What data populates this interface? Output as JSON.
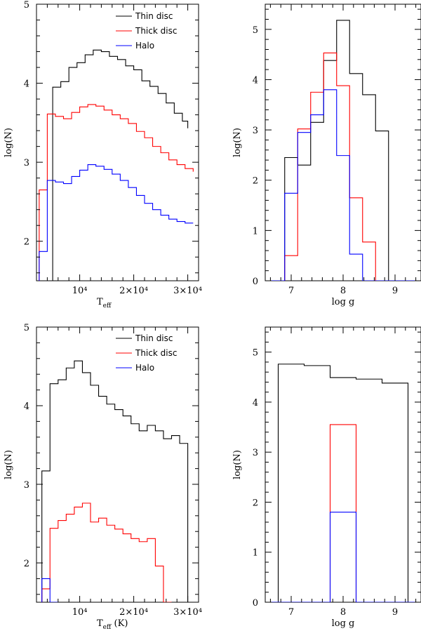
{
  "chart_data": [
    {
      "id": "top_left",
      "type": "histogram",
      "xlabel": "Teff",
      "ylabel": "log(N)",
      "xlim": [
        2000,
        32000
      ],
      "ylim": [
        1.5,
        5
      ],
      "xticks": [
        {
          "v": 10000,
          "label": "10⁴"
        },
        {
          "v": 20000,
          "label": "2×10⁴"
        },
        {
          "v": 30000,
          "label": "3×10⁴"
        }
      ],
      "yticks": [
        {
          "v": 2,
          "label": "2"
        },
        {
          "v": 3,
          "label": "3"
        },
        {
          "v": 4,
          "label": "4"
        },
        {
          "v": 5,
          "label": "5"
        }
      ],
      "legend": [
        "Thin disc",
        "Thick disc",
        "Halo"
      ],
      "series": [
        {
          "name": "Thin disc",
          "color": "#000000",
          "edges": [
            5000,
            6500,
            8000,
            9500,
            11000,
            12500,
            14000,
            15500,
            17000,
            18500,
            20000,
            21500,
            23000,
            24500,
            26000,
            27500,
            29000,
            30000
          ],
          "values": [
            3.95,
            4.02,
            4.2,
            4.26,
            4.36,
            4.42,
            4.4,
            4.34,
            4.3,
            4.22,
            4.17,
            4.03,
            3.96,
            3.87,
            3.75,
            3.62,
            3.52,
            3.43
          ]
        },
        {
          "name": "Thick disc",
          "color": "#ff0000",
          "edges": [
            2500,
            4000,
            5500,
            7000,
            8500,
            10000,
            11500,
            13000,
            14500,
            16000,
            17500,
            19000,
            20500,
            22000,
            23500,
            25000,
            26500,
            28000,
            29500,
            31000
          ],
          "values": [
            2.65,
            3.61,
            3.58,
            3.55,
            3.63,
            3.7,
            3.73,
            3.71,
            3.66,
            3.6,
            3.55,
            3.49,
            3.39,
            3.31,
            3.2,
            3.12,
            3.03,
            2.97,
            2.92,
            2.88
          ]
        },
        {
          "name": "Halo",
          "color": "#0000ff",
          "edges": [
            2500,
            4000,
            5500,
            7000,
            8500,
            10000,
            11500,
            13000,
            14500,
            16000,
            17500,
            19000,
            20500,
            22000,
            23500,
            25000,
            26500,
            28000,
            29500,
            31000
          ],
          "values": [
            1.87,
            2.77,
            2.75,
            2.73,
            2.82,
            2.9,
            2.97,
            2.95,
            2.91,
            2.85,
            2.77,
            2.68,
            2.58,
            2.48,
            2.4,
            2.33,
            2.28,
            2.25,
            2.23,
            2.23
          ]
        }
      ]
    },
    {
      "id": "top_right",
      "type": "histogram",
      "xlabel": "log g",
      "ylabel": "log(N)",
      "xlim": [
        6.5,
        9.5
      ],
      "ylim": [
        0,
        5.5
      ],
      "xticks": [
        {
          "v": 7,
          "label": "7"
        },
        {
          "v": 8,
          "label": "8"
        },
        {
          "v": 9,
          "label": "9"
        }
      ],
      "yticks": [
        {
          "v": 0,
          "label": "0"
        },
        {
          "v": 1,
          "label": "1"
        },
        {
          "v": 2,
          "label": "2"
        },
        {
          "v": 3,
          "label": "3"
        },
        {
          "v": 4,
          "label": "4"
        },
        {
          "v": 5,
          "label": "5"
        }
      ],
      "legend": [],
      "series": [
        {
          "name": "Thin disc",
          "color": "#000000",
          "edges": [
            6.5,
            6.875,
            7.125,
            7.375,
            7.625,
            7.875,
            8.125,
            8.375,
            8.625,
            8.875,
            9.5
          ],
          "values": [
            0,
            2.45,
            2.3,
            3.15,
            4.38,
            5.18,
            4.12,
            3.7,
            2.98,
            0
          ]
        },
        {
          "name": "Thick disc",
          "color": "#ff0000",
          "edges": [
            6.5,
            6.875,
            7.125,
            7.375,
            7.625,
            7.875,
            8.125,
            8.375,
            8.625,
            9.5
          ],
          "values": [
            0,
            0.5,
            3.02,
            3.75,
            4.53,
            3.88,
            1.65,
            0.77,
            0
          ]
        },
        {
          "name": "Halo",
          "color": "#0000ff",
          "edges": [
            6.5,
            6.875,
            7.125,
            7.375,
            7.625,
            7.875,
            8.125,
            8.375,
            9.5
          ],
          "values": [
            0,
            1.74,
            2.95,
            3.3,
            3.8,
            2.49,
            0.53,
            0
          ]
        }
      ]
    },
    {
      "id": "bottom_left",
      "type": "histogram",
      "xlabel": "Teff (K)",
      "ylabel": "log(N)",
      "xlim": [
        2000,
        32000
      ],
      "ylim": [
        1.5,
        5
      ],
      "xticks": [
        {
          "v": 10000,
          "label": "10⁴"
        },
        {
          "v": 20000,
          "label": "2×10⁴"
        },
        {
          "v": 30000,
          "label": "3×10⁴"
        }
      ],
      "yticks": [
        {
          "v": 2,
          "label": "2"
        },
        {
          "v": 3,
          "label": "3"
        },
        {
          "v": 4,
          "label": "4"
        },
        {
          "v": 5,
          "label": "5"
        }
      ],
      "legend": [
        "Thin disc",
        "Thick disc",
        "Halo"
      ],
      "series": [
        {
          "name": "Thin disc",
          "color": "#000000",
          "edges": [
            3000,
            4500,
            6000,
            7500,
            9000,
            10500,
            12000,
            13500,
            15000,
            16500,
            18000,
            19500,
            21000,
            22500,
            24000,
            25500,
            27000,
            28500,
            30000
          ],
          "values": [
            3.17,
            4.28,
            4.33,
            4.48,
            4.57,
            4.42,
            4.26,
            4.12,
            4.02,
            3.95,
            3.87,
            3.77,
            3.68,
            3.75,
            3.68,
            3.58,
            3.62,
            3.52
          ]
        },
        {
          "name": "Thick disc",
          "color": "#ff0000",
          "edges": [
            3000,
            4500,
            6000,
            7500,
            9000,
            10500,
            12000,
            13500,
            15000,
            16500,
            18000,
            19500,
            21000,
            22500,
            24000,
            25500,
            27000
          ],
          "values": [
            1.67,
            2.44,
            2.54,
            2.62,
            2.71,
            2.76,
            2.52,
            2.57,
            2.48,
            2.43,
            2.37,
            2.31,
            2.27,
            2.31,
            1.96,
            1.5
          ]
        },
        {
          "name": "Halo",
          "color": "#0000ff",
          "edges": [
            3000,
            4500,
            6000
          ],
          "values": [
            1.8,
            1.5
          ]
        }
      ]
    },
    {
      "id": "bottom_right",
      "type": "histogram",
      "xlabel": "log g",
      "ylabel": "log(N)",
      "xlim": [
        6.5,
        9.5
      ],
      "ylim": [
        0,
        5.5
      ],
      "xticks": [
        {
          "v": 7,
          "label": "7"
        },
        {
          "v": 8,
          "label": "8"
        },
        {
          "v": 9,
          "label": "9"
        }
      ],
      "yticks": [
        {
          "v": 0,
          "label": "0"
        },
        {
          "v": 1,
          "label": "1"
        },
        {
          "v": 2,
          "label": "2"
        },
        {
          "v": 3,
          "label": "3"
        },
        {
          "v": 4,
          "label": "4"
        },
        {
          "v": 5,
          "label": "5"
        }
      ],
      "legend": [],
      "series": [
        {
          "name": "Thin disc",
          "color": "#000000",
          "edges": [
            6.5,
            6.75,
            7.25,
            7.75,
            8.25,
            8.75,
            9.25,
            9.5
          ],
          "values": [
            0,
            4.76,
            4.73,
            4.49,
            4.46,
            4.38,
            0
          ]
        },
        {
          "name": "Thick disc",
          "color": "#ff0000",
          "edges": [
            6.5,
            7.75,
            8.25,
            9.5
          ],
          "values": [
            0,
            3.55,
            0
          ]
        },
        {
          "name": "Halo",
          "color": "#0000ff",
          "edges": [
            6.5,
            7.75,
            8.25,
            9.5
          ],
          "values": [
            0,
            1.8,
            0
          ]
        }
      ]
    }
  ]
}
